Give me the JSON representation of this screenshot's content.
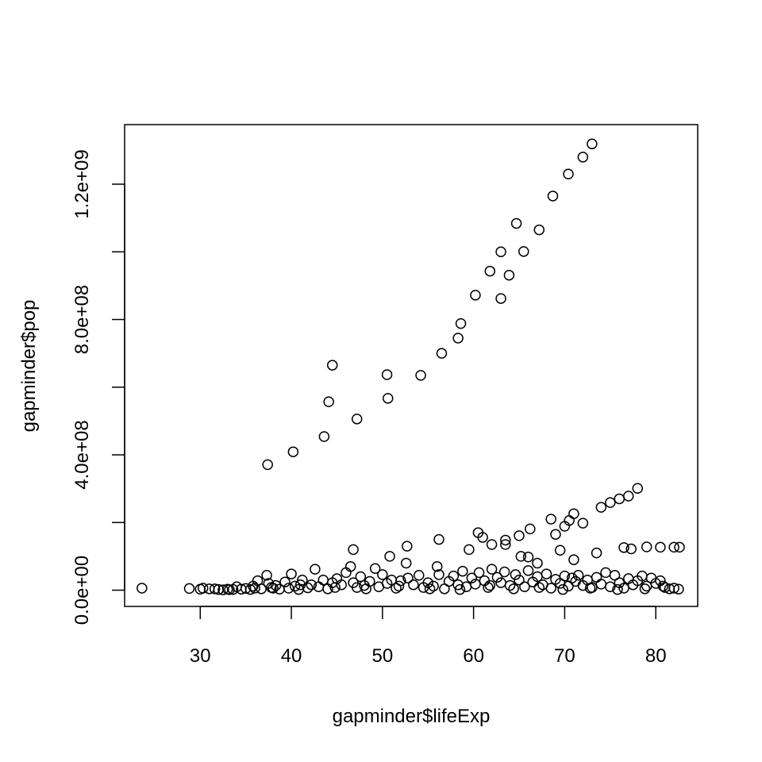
{
  "chart_data": {
    "type": "scatter",
    "title": "",
    "xlabel": "gapminder$lifeExp",
    "ylabel": "gapminder$pop",
    "xlim": [
      21.7,
      84.6
    ],
    "ylim": [
      -48000000,
      1376000000
    ],
    "xticks": [
      30,
      40,
      50,
      60,
      70,
      80
    ],
    "xtick_labels": [
      "30",
      "40",
      "50",
      "60",
      "70",
      "80"
    ],
    "yticks": [
      0,
      200000000,
      400000000,
      600000000,
      800000000,
      1000000000,
      1200000000
    ],
    "ytick_labels": [
      "0.0e+00",
      "",
      "4.0e+08",
      "",
      "8.0e+08",
      "",
      "1.2e+09"
    ],
    "grid": false,
    "legend": "none",
    "marker": "open-circle",
    "series": [
      {
        "points": [
          [
            23.6,
            6000000
          ],
          [
            28.8,
            5000000
          ],
          [
            30.0,
            3000000
          ],
          [
            30.3,
            6000000
          ],
          [
            31.0,
            4000000
          ],
          [
            31.6,
            4000000
          ],
          [
            32.0,
            2000000
          ],
          [
            32.5,
            1000000
          ],
          [
            33.0,
            3000000
          ],
          [
            33.6,
            2000000
          ],
          [
            34.0,
            10000000
          ],
          [
            34.5,
            3000000
          ],
          [
            35.0,
            5000000
          ],
          [
            35.5,
            2000000
          ],
          [
            36.0,
            6000000
          ],
          [
            36.3,
            28000000
          ],
          [
            36.7,
            4000000
          ],
          [
            37.3,
            44000000
          ],
          [
            37.5,
            20000000
          ],
          [
            37.8,
            8000000
          ],
          [
            38.3,
            14000000
          ],
          [
            38.7,
            3000000
          ],
          [
            39.3,
            24000000
          ],
          [
            39.7,
            6000000
          ],
          [
            40.0,
            48000000
          ],
          [
            40.4,
            12000000
          ],
          [
            40.8,
            2000000
          ],
          [
            41.2,
            30000000
          ],
          [
            41.8,
            7000000
          ],
          [
            42.2,
            16000000
          ],
          [
            42.6,
            62000000
          ],
          [
            43.0,
            10000000
          ],
          [
            43.5,
            30000000
          ],
          [
            44.0,
            4000000
          ],
          [
            44.5,
            22000000
          ],
          [
            45.0,
            34000000
          ],
          [
            45.5,
            16000000
          ],
          [
            46.0,
            52000000
          ],
          [
            46.5,
            70000000
          ],
          [
            46.8,
            22000000
          ],
          [
            47.2,
            8000000
          ],
          [
            47.6,
            40000000
          ],
          [
            48.0,
            14000000
          ],
          [
            48.6,
            26000000
          ],
          [
            49.2,
            64000000
          ],
          [
            49.6,
            10000000
          ],
          [
            50.0,
            46000000
          ],
          [
            50.5,
            20000000
          ],
          [
            51.0,
            30000000
          ],
          [
            51.5,
            6000000
          ],
          [
            52.0,
            28000000
          ],
          [
            52.6,
            80000000
          ],
          [
            52.8,
            36000000
          ],
          [
            53.4,
            16000000
          ],
          [
            54.0,
            44000000
          ],
          [
            54.5,
            8000000
          ],
          [
            55.0,
            22000000
          ],
          [
            55.6,
            12000000
          ],
          [
            56.0,
            70000000
          ],
          [
            56.2,
            46000000
          ],
          [
            56.8,
            4000000
          ],
          [
            57.3,
            26000000
          ],
          [
            57.8,
            42000000
          ],
          [
            58.3,
            16000000
          ],
          [
            58.8,
            56000000
          ],
          [
            59.2,
            10000000
          ],
          [
            59.8,
            36000000
          ],
          [
            60.2,
            18000000
          ],
          [
            60.6,
            52000000
          ],
          [
            61.2,
            28000000
          ],
          [
            61.6,
            8000000
          ],
          [
            62.0,
            62000000
          ],
          [
            62.6,
            38000000
          ],
          [
            63.0,
            22000000
          ],
          [
            63.4,
            54000000
          ],
          [
            64.0,
            14000000
          ],
          [
            64.6,
            46000000
          ],
          [
            65.0,
            30000000
          ],
          [
            65.6,
            10000000
          ],
          [
            66.0,
            58000000
          ],
          [
            66.5,
            24000000
          ],
          [
            67.0,
            40000000
          ],
          [
            67.6,
            16000000
          ],
          [
            68.0,
            48000000
          ],
          [
            68.5,
            6000000
          ],
          [
            69.0,
            32000000
          ],
          [
            69.5,
            20000000
          ],
          [
            70.0,
            42000000
          ],
          [
            70.4,
            12000000
          ],
          [
            70.8,
            36000000
          ],
          [
            71.2,
            26000000
          ],
          [
            71.5,
            44000000
          ],
          [
            72.0,
            14000000
          ],
          [
            72.5,
            30000000
          ],
          [
            73.0,
            8000000
          ],
          [
            73.5,
            38000000
          ],
          [
            74.0,
            18000000
          ],
          [
            74.5,
            52000000
          ],
          [
            75.0,
            10000000
          ],
          [
            75.5,
            44000000
          ],
          [
            76.0,
            22000000
          ],
          [
            76.5,
            6000000
          ],
          [
            77.0,
            34000000
          ],
          [
            77.5,
            16000000
          ],
          [
            78.0,
            28000000
          ],
          [
            78.5,
            42000000
          ],
          [
            79.0,
            12000000
          ],
          [
            79.5,
            36000000
          ],
          [
            80.0,
            20000000
          ],
          [
            80.5,
            28000000
          ],
          [
            81.0,
            8000000
          ],
          [
            81.5,
            4000000
          ],
          [
            82.0,
            6000000
          ],
          [
            82.5,
            3000000
          ],
          [
            33.2,
            1500000
          ],
          [
            35.8,
            12000000
          ],
          [
            38.0,
            6000000
          ],
          [
            41.0,
            16000000
          ],
          [
            44.8,
            8000000
          ],
          [
            48.2,
            4000000
          ],
          [
            51.8,
            12000000
          ],
          [
            55.2,
            4000000
          ],
          [
            58.5,
            2000000
          ],
          [
            61.8,
            14000000
          ],
          [
            64.4,
            4000000
          ],
          [
            67.2,
            8000000
          ],
          [
            69.8,
            2000000
          ],
          [
            72.8,
            6000000
          ],
          [
            75.8,
            2000000
          ],
          [
            78.8,
            4000000
          ],
          [
            80.8,
            12000000
          ],
          [
            37.4,
            371000000
          ],
          [
            40.2,
            409000000
          ],
          [
            43.6,
            454000000
          ],
          [
            44.1,
            557000000
          ],
          [
            44.5,
            665000000
          ],
          [
            47.2,
            506000000
          ],
          [
            50.5,
            637000000
          ],
          [
            50.6,
            567000000
          ],
          [
            54.2,
            635000000
          ],
          [
            56.5,
            700000000
          ],
          [
            58.3,
            745000000
          ],
          [
            58.6,
            788000000
          ],
          [
            60.2,
            872000000
          ],
          [
            61.8,
            943000000
          ],
          [
            63.0,
            862000000
          ],
          [
            63.0,
            1000000000
          ],
          [
            63.9,
            931000000
          ],
          [
            64.7,
            1084000000
          ],
          [
            65.5,
            1001000000
          ],
          [
            67.2,
            1065000000
          ],
          [
            68.7,
            1165000000
          ],
          [
            70.4,
            1230000000
          ],
          [
            72.0,
            1280000000
          ],
          [
            73.0,
            1319000000
          ],
          [
            62.0,
            135000000
          ],
          [
            63.5,
            148000000
          ],
          [
            65.0,
            161000000
          ],
          [
            66.2,
            181000000
          ],
          [
            68.5,
            210000000
          ],
          [
            69.0,
            165000000
          ],
          [
            70.0,
            189000000
          ],
          [
            70.5,
            206000000
          ],
          [
            71.0,
            226000000
          ],
          [
            72.0,
            198000000
          ],
          [
            74.0,
            245000000
          ],
          [
            75.0,
            259000000
          ],
          [
            76.0,
            270000000
          ],
          [
            77.0,
            278000000
          ],
          [
            78.0,
            301000000
          ],
          [
            61.0,
            156000000
          ],
          [
            66.0,
            98000000
          ],
          [
            69.5,
            118000000
          ],
          [
            73.5,
            110000000
          ],
          [
            76.5,
            126000000
          ],
          [
            77.3,
            122000000
          ],
          [
            79.0,
            128000000
          ],
          [
            80.5,
            127000000
          ],
          [
            82.0,
            127000000
          ],
          [
            82.6,
            127000000
          ],
          [
            46.8,
            120000000
          ],
          [
            50.8,
            100000000
          ],
          [
            52.7,
            130000000
          ],
          [
            56.2,
            150000000
          ],
          [
            59.5,
            120000000
          ],
          [
            60.5,
            170000000
          ],
          [
            63.5,
            135000000
          ],
          [
            65.2,
            100000000
          ],
          [
            67.0,
            80000000
          ],
          [
            71.0,
            90000000
          ]
        ]
      }
    ]
  }
}
